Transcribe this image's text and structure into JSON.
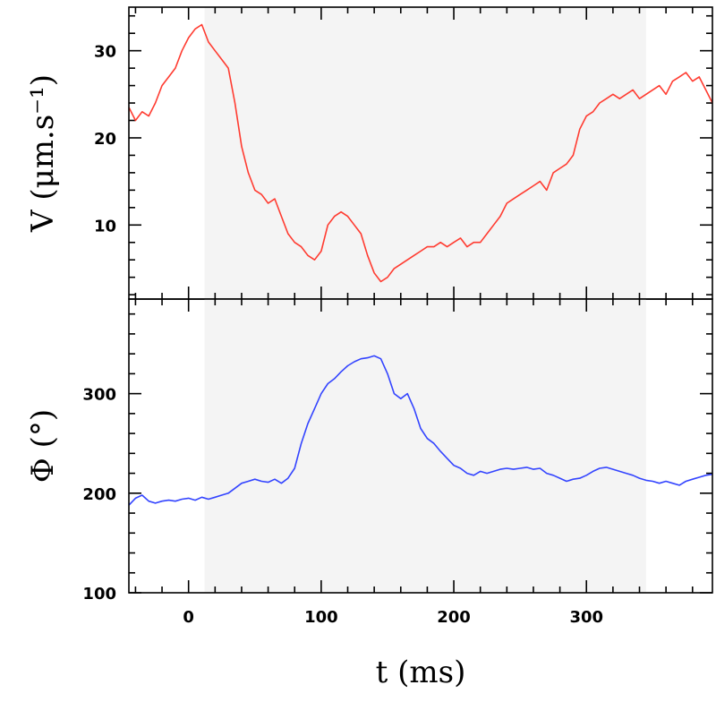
{
  "chart_data": [
    {
      "type": "line",
      "ylabel": "V (μm.s⁻¹)",
      "xlim": [
        -45,
        395
      ],
      "ylim": [
        1.5,
        35
      ],
      "x_ticks": [
        0,
        100,
        200,
        300
      ],
      "y_ticks": [
        10,
        20,
        30
      ],
      "shaded_region": [
        12,
        345
      ],
      "grid": false,
      "series": [
        {
          "color": "#ff3b30",
          "x": [
            -45,
            -40,
            -35,
            -30,
            -25,
            -20,
            -15,
            -10,
            -5,
            0,
            5,
            10,
            15,
            20,
            25,
            30,
            35,
            40,
            45,
            50,
            55,
            60,
            65,
            70,
            75,
            80,
            85,
            90,
            95,
            100,
            105,
            110,
            115,
            120,
            125,
            130,
            135,
            140,
            145,
            150,
            155,
            160,
            165,
            170,
            175,
            180,
            185,
            190,
            195,
            200,
            205,
            210,
            215,
            220,
            225,
            230,
            235,
            240,
            245,
            250,
            255,
            260,
            265,
            270,
            275,
            280,
            285,
            290,
            295,
            300,
            305,
            310,
            315,
            320,
            325,
            330,
            335,
            340,
            345,
            350,
            355,
            360,
            365,
            370,
            375,
            380,
            385,
            390,
            395
          ],
          "values": [
            23.5,
            22,
            23,
            22.5,
            24,
            26,
            27,
            28,
            30,
            31.5,
            32.5,
            33,
            31,
            30,
            29,
            28,
            24,
            19,
            16,
            14,
            13.5,
            12.5,
            13,
            11,
            9,
            8,
            7.5,
            6.5,
            6,
            7,
            10,
            11,
            11.5,
            11,
            10,
            9,
            6.5,
            4.5,
            3.5,
            4,
            5,
            5.5,
            6,
            6.5,
            7,
            7.5,
            7.5,
            8,
            7.5,
            8,
            8.5,
            7.5,
            8,
            8,
            9,
            10,
            11,
            12.5,
            13,
            13.5,
            14,
            14.5,
            15,
            14,
            16,
            16.5,
            17,
            18,
            21,
            22.5,
            23,
            24,
            24.5,
            25,
            24.5,
            25,
            25.5,
            24.5,
            25,
            25.5,
            26,
            25,
            26.5,
            27,
            27.5,
            26.5,
            27,
            25.5,
            24
          ]
        }
      ]
    },
    {
      "type": "line",
      "xlabel": "t (ms)",
      "ylabel": "Φ (°)",
      "xlim": [
        -45,
        395
      ],
      "ylim": [
        100,
        395
      ],
      "x_ticks": [
        0,
        100,
        200,
        300
      ],
      "y_ticks": [
        100,
        200,
        300
      ],
      "shaded_region": [
        12,
        345
      ],
      "grid": false,
      "series": [
        {
          "color": "#3344ff",
          "x": [
            -45,
            -40,
            -35,
            -30,
            -25,
            -20,
            -15,
            -10,
            -5,
            0,
            5,
            10,
            15,
            20,
            25,
            30,
            35,
            40,
            45,
            50,
            55,
            60,
            65,
            70,
            75,
            80,
            85,
            90,
            95,
            100,
            105,
            110,
            115,
            120,
            125,
            130,
            135,
            140,
            145,
            150,
            155,
            160,
            165,
            170,
            175,
            180,
            185,
            190,
            195,
            200,
            205,
            210,
            215,
            220,
            225,
            230,
            235,
            240,
            245,
            250,
            255,
            260,
            265,
            270,
            275,
            280,
            285,
            290,
            295,
            300,
            305,
            310,
            315,
            320,
            325,
            330,
            335,
            340,
            345,
            350,
            355,
            360,
            365,
            370,
            375,
            380,
            385,
            390,
            395
          ],
          "values": [
            188,
            195,
            198,
            192,
            190,
            192,
            193,
            192,
            194,
            195,
            193,
            196,
            194,
            196,
            198,
            200,
            205,
            210,
            212,
            214,
            212,
            211,
            214,
            210,
            215,
            225,
            250,
            270,
            285,
            300,
            310,
            315,
            322,
            328,
            332,
            335,
            336,
            338,
            335,
            320,
            300,
            295,
            300,
            285,
            265,
            255,
            250,
            242,
            235,
            228,
            225,
            220,
            218,
            222,
            220,
            222,
            224,
            225,
            224,
            225,
            226,
            224,
            225,
            220,
            218,
            215,
            212,
            214,
            215,
            218,
            222,
            225,
            226,
            224,
            222,
            220,
            218,
            215,
            213,
            212,
            210,
            212,
            210,
            208,
            212,
            214,
            216,
            218,
            219
          ]
        }
      ]
    }
  ]
}
